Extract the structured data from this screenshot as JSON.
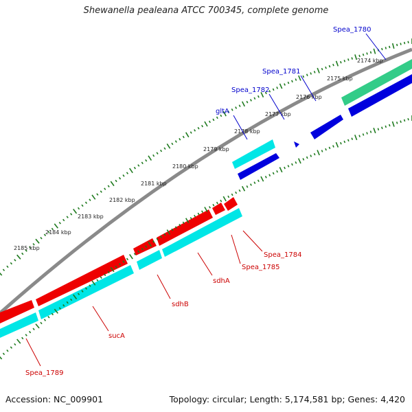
{
  "title": "Shewanella pealeana ATCC 700345, complete genome",
  "footer": {
    "accession": "Accession: NC_009901",
    "summary": "Topology: circular; Length: 5,174,581 bp; Genes: 4,420"
  },
  "colors": {
    "backbone": "#8a8a8a",
    "tick": "#1e7a1e",
    "label_forward": "#0000cc",
    "label_reverse": "#cc0000",
    "cds_forward": "#0000dd",
    "cds_reverse": "#ee0000",
    "rna_cyan": "#00e6e6",
    "rna_green": "#33cc88"
  },
  "scale_labels": [
    {
      "text": "2174 kbp",
      "kbp": 2174
    },
    {
      "text": "2175 kbp",
      "kbp": 2175
    },
    {
      "text": "2176 kbp",
      "kbp": 2176
    },
    {
      "text": "2177 kbp",
      "kbp": 2177
    },
    {
      "text": "2178 kbp",
      "kbp": 2178
    },
    {
      "text": "2179 kbp",
      "kbp": 2179
    },
    {
      "text": "2180 kbp",
      "kbp": 2180
    },
    {
      "text": "2181 kbp",
      "kbp": 2181
    },
    {
      "text": "2182 kbp",
      "kbp": 2182
    },
    {
      "text": "2183 kbp",
      "kbp": 2183
    },
    {
      "text": "2184 kbp",
      "kbp": 2184
    },
    {
      "text": "2185 kbp",
      "kbp": 2185
    }
  ],
  "genes_top": [
    {
      "name": "Spea_1780",
      "color_key": "label_forward"
    },
    {
      "name": "Spea_1781",
      "color_key": "label_forward"
    },
    {
      "name": "Spea_1782",
      "color_key": "label_forward"
    },
    {
      "name": "gltA",
      "color_key": "label_forward"
    }
  ],
  "genes_bottom": [
    {
      "name": "Spea_1784",
      "color_key": "label_reverse"
    },
    {
      "name": "Spea_1785",
      "color_key": "label_reverse"
    },
    {
      "name": "sdhA",
      "color_key": "label_reverse"
    },
    {
      "name": "sdhB",
      "color_key": "label_reverse"
    },
    {
      "name": "sucA",
      "color_key": "label_reverse"
    },
    {
      "name": "Spea_1789",
      "color_key": "label_reverse"
    }
  ]
}
